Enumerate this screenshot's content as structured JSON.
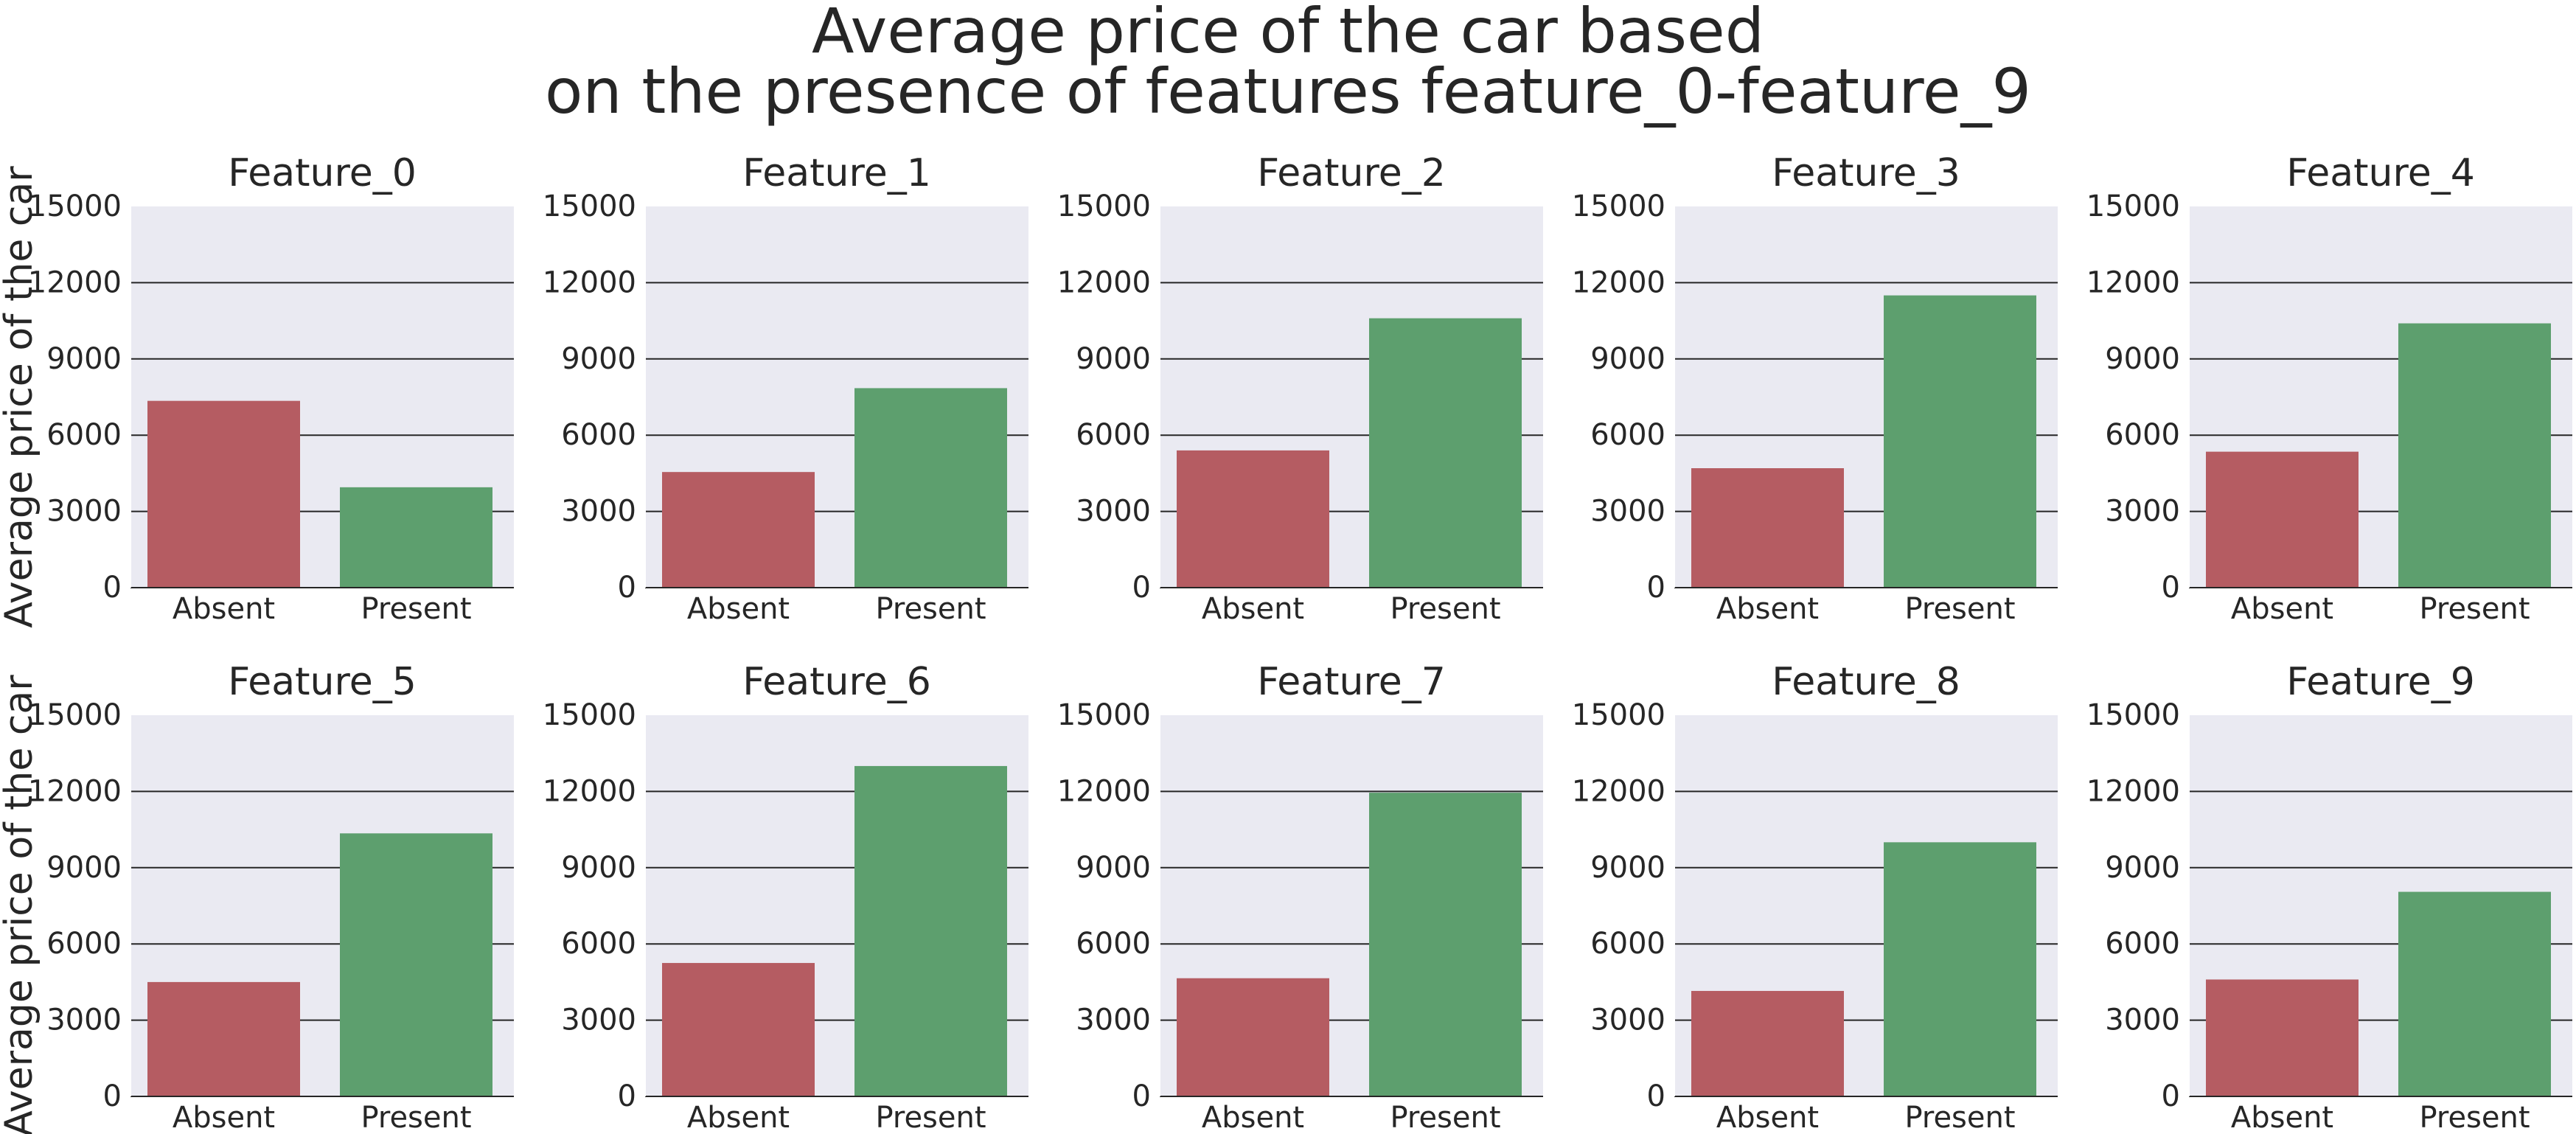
{
  "title_lines": [
    "Average price of the car based",
    "on the presence of features feature_0-feature_9"
  ],
  "colors": {
    "absent": "#b55c62",
    "present": "#5d9f6e",
    "plot_bg": "#eaeaf2",
    "grid": "#262626"
  },
  "chart_data": [
    {
      "type": "bar",
      "title": "Feature_0",
      "categories": [
        "Absent",
        "Present"
      ],
      "values": [
        7350,
        3950
      ],
      "ylabel": "Average price of the car",
      "ylim": [
        0,
        15000
      ],
      "yticks": [
        "0",
        "3000",
        "6000",
        "9000",
        "12000",
        "15000"
      ],
      "grid": true
    },
    {
      "type": "bar",
      "title": "Feature_1",
      "categories": [
        "Absent",
        "Present"
      ],
      "values": [
        4550,
        7850
      ],
      "ylabel": "",
      "ylim": [
        0,
        15000
      ],
      "yticks": [
        "0",
        "3000",
        "6000",
        "9000",
        "12000",
        "15000"
      ],
      "grid": true
    },
    {
      "type": "bar",
      "title": "Feature_2",
      "categories": [
        "Absent",
        "Present"
      ],
      "values": [
        5400,
        10600
      ],
      "ylabel": "",
      "ylim": [
        0,
        15000
      ],
      "yticks": [
        "0",
        "3000",
        "6000",
        "9000",
        "12000",
        "15000"
      ],
      "grid": true
    },
    {
      "type": "bar",
      "title": "Feature_3",
      "categories": [
        "Absent",
        "Present"
      ],
      "values": [
        4700,
        11500
      ],
      "ylabel": "",
      "ylim": [
        0,
        15000
      ],
      "yticks": [
        "0",
        "3000",
        "6000",
        "9000",
        "12000",
        "15000"
      ],
      "grid": true
    },
    {
      "type": "bar",
      "title": "Feature_4",
      "categories": [
        "Absent",
        "Present"
      ],
      "values": [
        5350,
        10400
      ],
      "ylabel": "",
      "ylim": [
        0,
        15000
      ],
      "yticks": [
        "0",
        "3000",
        "6000",
        "9000",
        "12000",
        "15000"
      ],
      "grid": true
    },
    {
      "type": "bar",
      "title": "Feature_5",
      "categories": [
        "Absent",
        "Present"
      ],
      "values": [
        4500,
        10350
      ],
      "ylabel": "Average price of the car",
      "ylim": [
        0,
        15000
      ],
      "yticks": [
        "0",
        "3000",
        "6000",
        "9000",
        "12000",
        "15000"
      ],
      "grid": true
    },
    {
      "type": "bar",
      "title": "Feature_6",
      "categories": [
        "Absent",
        "Present"
      ],
      "values": [
        5250,
        13000
      ],
      "ylabel": "",
      "ylim": [
        0,
        15000
      ],
      "yticks": [
        "0",
        "3000",
        "6000",
        "9000",
        "12000",
        "15000"
      ],
      "grid": true
    },
    {
      "type": "bar",
      "title": "Feature_7",
      "categories": [
        "Absent",
        "Present"
      ],
      "values": [
        4650,
        11950
      ],
      "ylabel": "",
      "ylim": [
        0,
        15000
      ],
      "yticks": [
        "0",
        "3000",
        "6000",
        "9000",
        "12000",
        "15000"
      ],
      "grid": true
    },
    {
      "type": "bar",
      "title": "Feature_8",
      "categories": [
        "Absent",
        "Present"
      ],
      "values": [
        4150,
        10000
      ],
      "ylabel": "",
      "ylim": [
        0,
        15000
      ],
      "yticks": [
        "0",
        "3000",
        "6000",
        "9000",
        "12000",
        "15000"
      ],
      "grid": true
    },
    {
      "type": "bar",
      "title": "Feature_9",
      "categories": [
        "Absent",
        "Present"
      ],
      "values": [
        4600,
        8050
      ],
      "ylabel": "",
      "ylim": [
        0,
        15000
      ],
      "yticks": [
        "0",
        "3000",
        "6000",
        "9000",
        "12000",
        "15000"
      ],
      "grid": true
    }
  ]
}
